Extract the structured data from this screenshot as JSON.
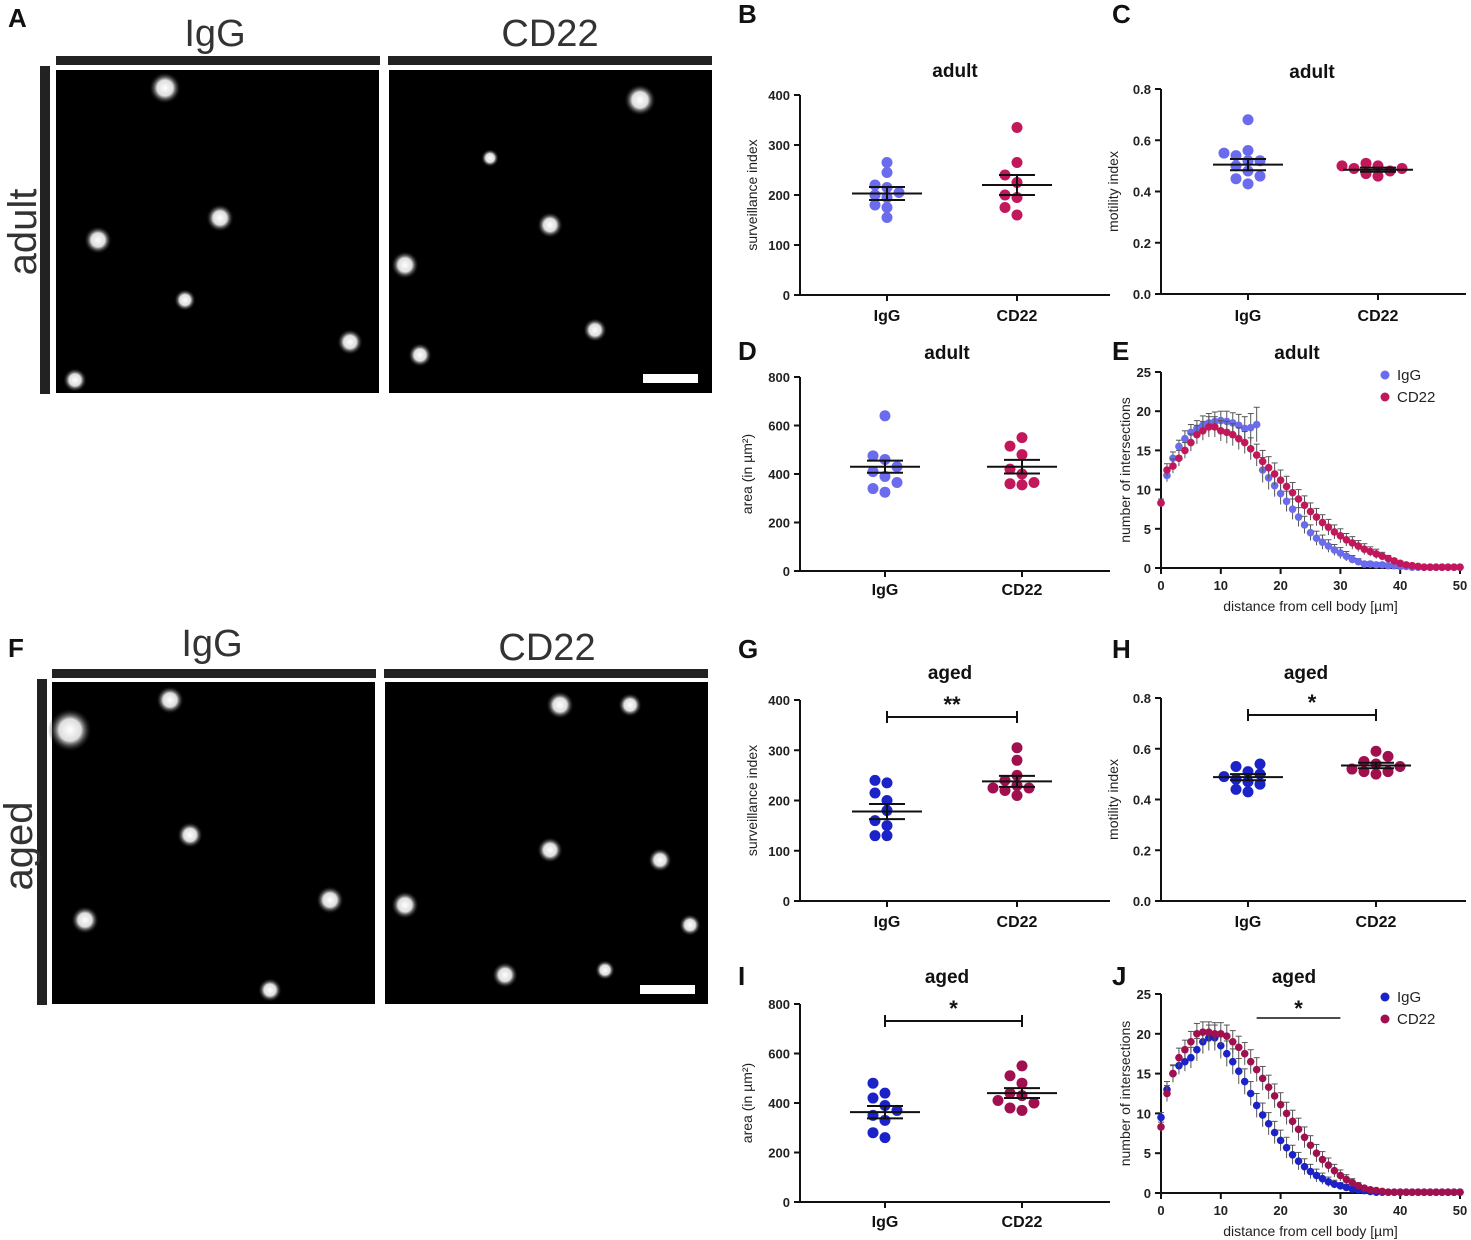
{
  "panels_micro": [
    {
      "label": "A",
      "row_label": "adult",
      "conditions": [
        "IgG",
        "CD22"
      ]
    },
    {
      "label": "F",
      "row_label": "aged",
      "conditions": [
        "IgG",
        "CD22"
      ]
    }
  ],
  "chart_data": [
    {
      "id": "B",
      "type": "scatter",
      "title": "adult",
      "ylabel": "surveillance index",
      "xlabel": "",
      "categories": [
        "IgG",
        "CD22"
      ],
      "ylim": [
        0,
        400
      ],
      "yticks": [
        0,
        100,
        200,
        300,
        400
      ],
      "colors": [
        "#6b6bee",
        "#c2185b"
      ],
      "points": [
        [
          155,
          175,
          180,
          195,
          200,
          205,
          215,
          220,
          245,
          265
        ],
        [
          160,
          175,
          195,
          200,
          225,
          240,
          265,
          335
        ]
      ],
      "means": [
        203,
        220
      ],
      "sem": [
        13,
        20
      ],
      "significance": null
    },
    {
      "id": "C",
      "type": "scatter",
      "title": "adult",
      "ylabel": "motility index",
      "xlabel": "",
      "categories": [
        "IgG",
        "CD22"
      ],
      "ylim": [
        0,
        0.8
      ],
      "yticks": [
        0.0,
        0.2,
        0.4,
        0.6,
        0.8
      ],
      "colors": [
        "#6b6bee",
        "#c2185b"
      ],
      "points": [
        [
          0.43,
          0.45,
          0.46,
          0.48,
          0.5,
          0.52,
          0.52,
          0.54,
          0.55,
          0.56,
          0.68
        ],
        [
          0.46,
          0.47,
          0.48,
          0.49,
          0.49,
          0.5,
          0.5,
          0.51
        ]
      ],
      "means": [
        0.505,
        0.485
      ],
      "sem": [
        0.022,
        0.008
      ],
      "significance": null
    },
    {
      "id": "D",
      "type": "scatter",
      "title": "adult",
      "ylabel": "area (in µm²)",
      "xlabel": "",
      "categories": [
        "IgG",
        "CD22"
      ],
      "ylim": [
        0,
        800
      ],
      "yticks": [
        0,
        200,
        400,
        600,
        800
      ],
      "colors": [
        "#6b6bee",
        "#c2185b"
      ],
      "points": [
        [
          325,
          340,
          365,
          390,
          410,
          430,
          460,
          475,
          640
        ],
        [
          355,
          360,
          365,
          400,
          420,
          480,
          515,
          550
        ]
      ],
      "means": [
        430,
        430
      ],
      "sem": [
        25,
        28
      ],
      "significance": null
    },
    {
      "id": "E",
      "type": "line",
      "title": "adult",
      "xlabel": "distance from cell body [µm]",
      "ylabel": "number of intersections",
      "xlim": [
        0,
        50
      ],
      "ylim": [
        0,
        25
      ],
      "xticks": [
        0,
        10,
        20,
        30,
        40,
        50
      ],
      "yticks": [
        0,
        5,
        10,
        15,
        20,
        25
      ],
      "x": [
        0,
        1,
        2,
        3,
        4,
        5,
        6,
        7,
        8,
        9,
        10,
        11,
        12,
        13,
        14,
        15,
        16,
        17,
        18,
        19,
        20,
        21,
        22,
        23,
        24,
        25,
        26,
        27,
        28,
        29,
        30,
        31,
        32,
        33,
        34,
        35,
        36,
        37,
        38,
        39,
        40,
        41,
        42,
        43,
        44,
        45,
        46,
        47,
        48,
        49,
        50
      ],
      "legend": "top-right",
      "series": [
        {
          "name": "IgG",
          "color": "#6b6bee",
          "values": [
            8.3,
            11.8,
            14,
            15.5,
            16.5,
            17.3,
            17.8,
            18.2,
            18.5,
            18.7,
            18.8,
            18.7,
            18.5,
            18.2,
            17.8,
            17.9,
            18.3,
            12.5,
            11.5,
            10.5,
            9.5,
            8.5,
            7.5,
            6.5,
            5.5,
            4.5,
            3.8,
            3.3,
            2.8,
            2.3,
            1.9,
            1.5,
            1.1,
            0.8,
            0.5,
            0.5,
            0.4,
            0.4,
            0.3,
            0.3,
            0.2,
            0.2,
            0.1,
            0.1,
            0.1,
            0.1,
            0.1,
            0.1,
            0.1,
            0.1,
            0.1
          ],
          "err": [
            0.5,
            0.8,
            0.8,
            0.8,
            1,
            1,
            1,
            1.2,
            1.2,
            1.2,
            1.2,
            1.3,
            1.3,
            1.4,
            1.5,
            1.8,
            2.2,
            1.6,
            1.5,
            1.4,
            1.4,
            1.3,
            1.3,
            1.2,
            1.1,
            1.0,
            0.9,
            0.9,
            0.8,
            0.7,
            0.7,
            0.6,
            0.5,
            0.4,
            0.3,
            0.3,
            0.3,
            0.3,
            0.2,
            0.2,
            0.2,
            0.2,
            0.1,
            0.1,
            0.1,
            0.1,
            0.1,
            0.1,
            0.1,
            0.1,
            0.1
          ]
        },
        {
          "name": "CD22",
          "color": "#c2185b",
          "values": [
            8.3,
            12.5,
            13,
            14,
            15,
            16,
            17,
            17.5,
            18,
            18,
            17.5,
            17.3,
            17,
            16.5,
            16,
            15.2,
            14.4,
            13.6,
            12.8,
            12,
            11.2,
            10.4,
            9.6,
            8.8,
            8,
            7.2,
            6.5,
            5.8,
            5.2,
            4.6,
            4.1,
            3.6,
            3.2,
            2.8,
            2.4,
            2.1,
            1.8,
            1.5,
            1.2,
            0.9,
            0.6,
            0.4,
            0.3,
            0.2,
            0.1,
            0.1,
            0.1,
            0.1,
            0.1,
            0.1,
            0.1
          ],
          "err": [
            0.5,
            0.8,
            0.9,
            1,
            1,
            1.1,
            1.2,
            1.2,
            1.3,
            1.3,
            1.3,
            1.4,
            1.4,
            1.4,
            1.4,
            1.4,
            1.4,
            1.4,
            1.4,
            1.4,
            1.3,
            1.3,
            1.3,
            1.2,
            1.2,
            1.1,
            1.1,
            1.0,
            1.0,
            0.9,
            0.9,
            0.8,
            0.8,
            0.7,
            0.7,
            0.6,
            0.6,
            0.5,
            0.4,
            0.3,
            0.3,
            0.2,
            0.2,
            0.1,
            0.1,
            0.1,
            0.1,
            0.1,
            0.1,
            0.1,
            0.1
          ]
        }
      ],
      "significance": null
    },
    {
      "id": "G",
      "type": "scatter",
      "title": "aged",
      "ylabel": "surveillance index",
      "xlabel": "",
      "categories": [
        "IgG",
        "CD22"
      ],
      "ylim": [
        0,
        400
      ],
      "yticks": [
        0,
        100,
        200,
        300,
        400
      ],
      "colors": [
        "#1a22c8",
        "#a0104f"
      ],
      "points": [
        [
          130,
          130,
          150,
          160,
          180,
          200,
          215,
          235,
          240
        ],
        [
          210,
          220,
          225,
          225,
          230,
          240,
          250,
          280,
          305
        ]
      ],
      "means": [
        178,
        238
      ],
      "sem": [
        15,
        11
      ],
      "significance": "**"
    },
    {
      "id": "H",
      "type": "scatter",
      "title": "aged",
      "ylabel": "motility index",
      "xlabel": "",
      "categories": [
        "IgG",
        "CD22"
      ],
      "ylim": [
        0,
        0.8
      ],
      "yticks": [
        0.0,
        0.2,
        0.4,
        0.6,
        0.8
      ],
      "colors": [
        "#1a22c8",
        "#a0104f"
      ],
      "points": [
        [
          0.43,
          0.44,
          0.46,
          0.47,
          0.48,
          0.49,
          0.5,
          0.51,
          0.53,
          0.54
        ],
        [
          0.5,
          0.51,
          0.51,
          0.52,
          0.53,
          0.54,
          0.55,
          0.57,
          0.59
        ]
      ],
      "means": [
        0.488,
        0.534
      ],
      "sem": [
        0.012,
        0.011
      ],
      "significance": "*"
    },
    {
      "id": "I",
      "type": "scatter",
      "title": "aged",
      "ylabel": "area (in µm²)",
      "xlabel": "",
      "categories": [
        "IgG",
        "CD22"
      ],
      "ylim": [
        0,
        800
      ],
      "yticks": [
        0,
        200,
        400,
        600,
        800
      ],
      "colors": [
        "#1a22c8",
        "#a0104f"
      ],
      "points": [
        [
          260,
          280,
          330,
          350,
          370,
          390,
          420,
          440,
          480
        ],
        [
          370,
          380,
          400,
          410,
          430,
          440,
          480,
          510,
          550
        ]
      ],
      "means": [
        363,
        440
      ],
      "sem": [
        25,
        20
      ],
      "significance": "*"
    },
    {
      "id": "J",
      "type": "line",
      "title": "aged",
      "xlabel": "distance from cell body [µm]",
      "ylabel": "number of intersections",
      "xlim": [
        0,
        50
      ],
      "ylim": [
        0,
        25
      ],
      "xticks": [
        0,
        10,
        20,
        30,
        40,
        50
      ],
      "yticks": [
        0,
        5,
        10,
        15,
        20,
        25
      ],
      "x": [
        0,
        1,
        2,
        3,
        4,
        5,
        6,
        7,
        8,
        9,
        10,
        11,
        12,
        13,
        14,
        15,
        16,
        17,
        18,
        19,
        20,
        21,
        22,
        23,
        24,
        25,
        26,
        27,
        28,
        29,
        30,
        31,
        32,
        33,
        34,
        35,
        36,
        37,
        38,
        39,
        40,
        41,
        42,
        43,
        44,
        45,
        46,
        47,
        48,
        49,
        50
      ],
      "legend": "top-right",
      "series": [
        {
          "name": "IgG",
          "color": "#1a22c8",
          "values": [
            9.5,
            13,
            15,
            16,
            16.5,
            17,
            18,
            19,
            19.5,
            19.5,
            18.5,
            17.5,
            16.5,
            15.3,
            14,
            12.5,
            11,
            9.8,
            8.7,
            7.6,
            6.6,
            5.7,
            4.8,
            4.0,
            3.3,
            2.7,
            2.2,
            1.8,
            1.4,
            1.1,
            0.9,
            0.7,
            0.5,
            0.4,
            0.3,
            0.2,
            0.1,
            0.1,
            0.1,
            0.1,
            0.1,
            0.1,
            0.1,
            0.1,
            0.1,
            0.1,
            0.1,
            0.1,
            0.1,
            0.1,
            0.1
          ],
          "err": [
            0.6,
            1,
            1,
            1.1,
            1.2,
            1.3,
            1.4,
            1.5,
            1.6,
            1.6,
            1.6,
            1.6,
            1.6,
            1.6,
            1.6,
            1.5,
            1.5,
            1.5,
            1.4,
            1.4,
            1.3,
            1.3,
            1.2,
            1.1,
            1.0,
            0.9,
            0.8,
            0.7,
            0.6,
            0.5,
            0.4,
            0.4,
            0.3,
            0.3,
            0.2,
            0.2,
            0.1,
            0.1,
            0.1,
            0.1,
            0.1,
            0.1,
            0.1,
            0.1,
            0.1,
            0.1,
            0.1,
            0.1,
            0.1,
            0.1,
            0.1
          ]
        },
        {
          "name": "CD22",
          "color": "#a0104f",
          "values": [
            8.3,
            12.5,
            15,
            17,
            18,
            19,
            20,
            20.2,
            20.2,
            20,
            20,
            19.7,
            19,
            18.3,
            17.5,
            16.5,
            15.5,
            14.4,
            13.3,
            12.2,
            11.1,
            10,
            9,
            8,
            7,
            6,
            5,
            4.2,
            3.5,
            2.8,
            2.2,
            1.7,
            1.3,
            0.9,
            0.6,
            0.4,
            0.3,
            0.2,
            0.1,
            0.1,
            0.1,
            0.1,
            0.1,
            0.1,
            0.1,
            0.1,
            0.1,
            0.1,
            0.1,
            0.1,
            0.1
          ],
          "err": [
            0.6,
            1,
            1.1,
            1.2,
            1.2,
            1.3,
            1.3,
            1.3,
            1.3,
            1.4,
            1.4,
            1.4,
            1.4,
            1.4,
            1.4,
            1.5,
            1.5,
            1.5,
            1.5,
            1.5,
            1.5,
            1.4,
            1.4,
            1.4,
            1.3,
            1.2,
            1.1,
            1,
            0.9,
            0.8,
            0.7,
            0.6,
            0.5,
            0.4,
            0.3,
            0.3,
            0.2,
            0.2,
            0.1,
            0.1,
            0.1,
            0.1,
            0.1,
            0.1,
            0.1,
            0.1,
            0.1,
            0.1,
            0.1,
            0.1,
            0.1
          ]
        }
      ],
      "significance": "*",
      "sig_range": [
        16,
        30
      ]
    }
  ]
}
